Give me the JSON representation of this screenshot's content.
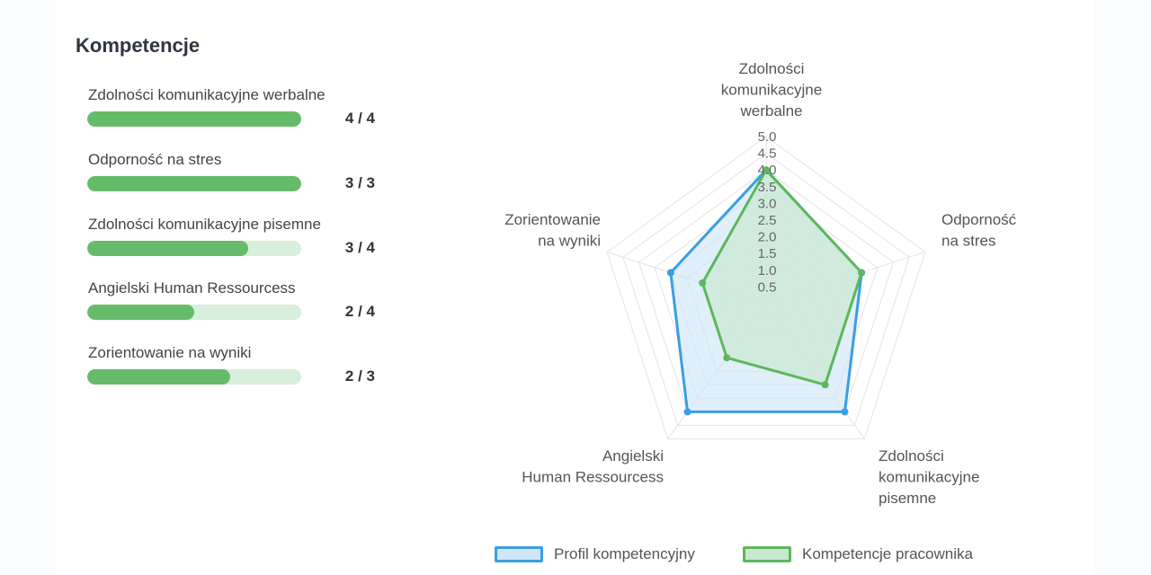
{
  "section_title": "Kompetencje",
  "skills": [
    {
      "name": "Zdolności komunikacyjne werbalne",
      "score": "4 / 4",
      "current": 4,
      "max": 4
    },
    {
      "name": "Odporność na stres",
      "score": "3 / 3",
      "current": 3,
      "max": 3
    },
    {
      "name": "Zdolności komunikacyjne pisemne",
      "score": "3 / 4",
      "current": 3,
      "max": 4
    },
    {
      "name": "Angielski Human Ressourcess",
      "score": "2 / 4",
      "current": 2,
      "max": 4
    },
    {
      "name": "Zorientowanie na wyniki",
      "score": "2 / 3",
      "current": 2,
      "max": 3
    }
  ],
  "colors": {
    "bar_fill": "#66bb6a",
    "bar_track": "#d7efdb",
    "profile_line": "#3a9ee4",
    "profile_fill": "#cfe6f8",
    "employee_line": "#5cb85c",
    "employee_fill": "#c8e8cf"
  },
  "chart_data": {
    "type": "radar",
    "axes": [
      [
        "Zdolności",
        "komunikacyjne",
        "werbalne"
      ],
      [
        "Odporność",
        "na stres"
      ],
      [
        "Zdolności",
        "komunikacyjne",
        "pisemne"
      ],
      [
        "Angielski",
        "Human Ressourcess"
      ],
      [
        "Zorientowanie",
        "na wyniki"
      ]
    ],
    "ticks": [
      "0.5",
      "1.0",
      "1.5",
      "2.0",
      "2.5",
      "3.0",
      "3.5",
      "4.0",
      "4.5",
      "5.0"
    ],
    "rmax": 5,
    "series": [
      {
        "name": "Profil kompetencyjny",
        "values": [
          4,
          3,
          4,
          4,
          3
        ]
      },
      {
        "name": "Kompetencje pracownika",
        "values": [
          4,
          3,
          3,
          2,
          2
        ]
      }
    ],
    "legend_position": "bottom"
  }
}
